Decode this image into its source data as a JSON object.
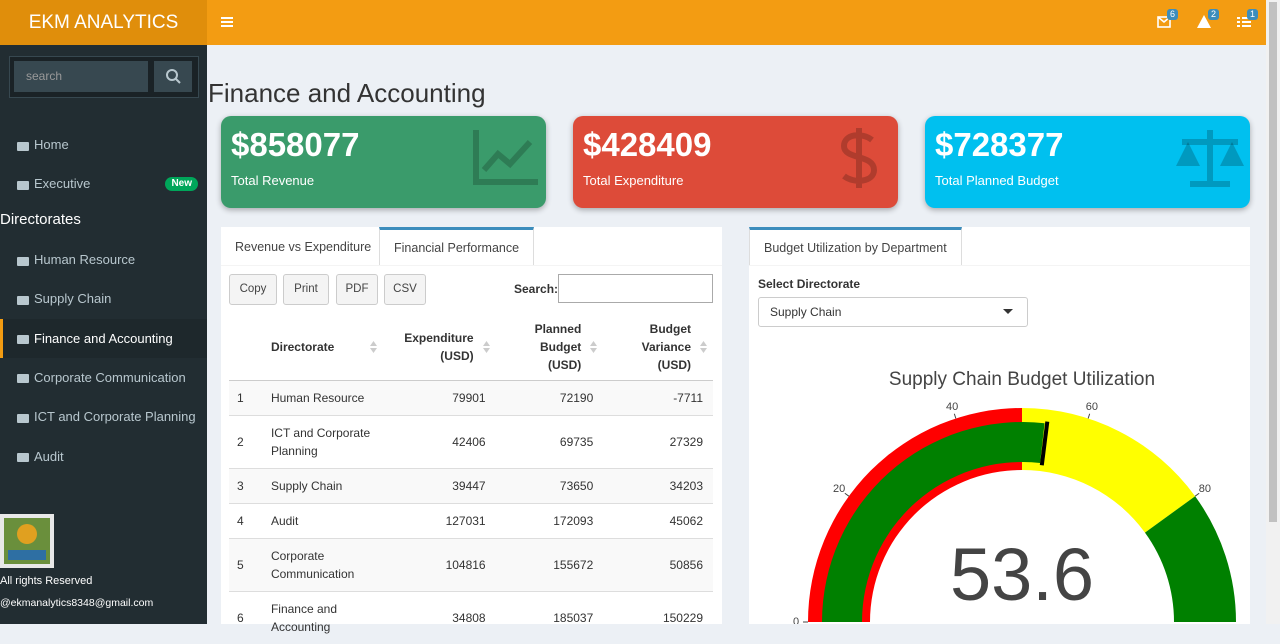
{
  "header": {
    "brand": "EKM ANALYTICS",
    "badges": [
      6,
      2,
      1
    ]
  },
  "sidebar": {
    "search_placeholder": "search",
    "items": [
      {
        "label": "Home"
      },
      {
        "label": "Executive",
        "badge": "New"
      }
    ],
    "section": "Directorates",
    "directorates": [
      {
        "label": "Human Resource"
      },
      {
        "label": "Supply Chain"
      },
      {
        "label": "Finance and Accounting",
        "active": true
      },
      {
        "label": "Corporate Communication"
      },
      {
        "label": "ICT and Corporate Planning"
      },
      {
        "label": "Audit"
      }
    ],
    "footer": {
      "rights": "All rights Reserved",
      "email": "@ekmanalytics8348@gmail.com"
    }
  },
  "page": {
    "title": "Finance and Accounting"
  },
  "cards": [
    {
      "value": "$858077",
      "label": "Total Revenue",
      "color": "#3a9b6b"
    },
    {
      "value": "$428409",
      "label": "Total Expenditure",
      "color": "#dd4b39"
    },
    {
      "value": "$728377",
      "label": "Total Planned Budget",
      "color": "#00c0ef"
    }
  ],
  "left_panel": {
    "tabs": [
      {
        "label": "Revenue vs Expenditure"
      },
      {
        "label": "Financial Performance",
        "active": true
      }
    ],
    "buttons": [
      "Copy",
      "Print",
      "PDF",
      "CSV"
    ],
    "search_label": "Search:",
    "table": {
      "columns": [
        "Directorate",
        "Expenditure (USD)",
        "Planned Budget (USD)",
        "Budget Variance (USD)"
      ],
      "rows": [
        [
          1,
          "Human Resource",
          79901,
          72190,
          -7711
        ],
        [
          2,
          "ICT and Corporate Planning",
          42406,
          69735,
          27329
        ],
        [
          3,
          "Supply Chain",
          39447,
          73650,
          34203
        ],
        [
          4,
          "Audit",
          127031,
          172093,
          45062
        ],
        [
          5,
          "Corporate Communication",
          104816,
          155672,
          50856
        ],
        [
          6,
          "Finance and Accounting",
          34808,
          185037,
          150229
        ]
      ]
    }
  },
  "right_panel": {
    "tab": "Budget Utilization by Department",
    "select_label": "Select Directorate",
    "select_value": "Supply Chain"
  },
  "chart_data": {
    "type": "gauge",
    "title": "Supply Chain Budget Utilization",
    "value": 53.6,
    "bar_color": "green",
    "range": [
      0,
      100
    ],
    "ticks": [
      0,
      20,
      40,
      60,
      80
    ],
    "steps": [
      {
        "range": [
          0,
          50
        ],
        "color": "red"
      },
      {
        "range": [
          50,
          80
        ],
        "color": "yellow"
      },
      {
        "range": [
          80,
          100
        ],
        "color": "green"
      }
    ],
    "threshold": {
      "value": 54,
      "color": "black"
    }
  }
}
